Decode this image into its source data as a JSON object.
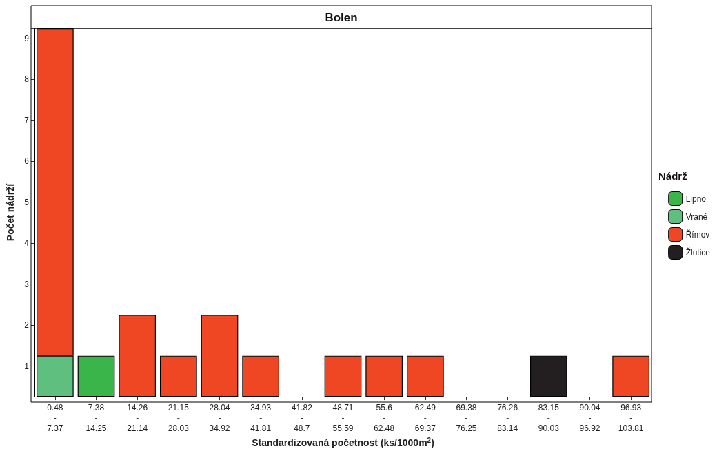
{
  "chart_data": {
    "type": "bar",
    "stacked": true,
    "title": "Bolen",
    "xlabel": "Standardizovaná početnost (ks/1000m$^{2}$)",
    "ylabel": "Počet nádrží",
    "legend_title": "Nádrž",
    "legend": "right",
    "categories": [
      "0.48\n-\n7.37",
      "7.38\n-\n14.25",
      "14.26\n-\n21.14",
      "21.15\n-\n28.03",
      "28.04\n-\n34.92",
      "34.93\n-\n41.81",
      "41.82\n-\n48.7",
      "48.71\n-\n55.59",
      "55.6\n-\n62.48",
      "62.49\n-\n69.37",
      "69.38\n-\n76.25",
      "76.26\n-\n83.14",
      "83.15\n-\n90.03",
      "90.04\n-\n96.92",
      "96.93\n-\n103.81"
    ],
    "series": [
      {
        "name": "Lipno",
        "color": "#39b54a",
        "values": [
          0,
          1,
          0,
          0,
          0,
          0,
          0,
          0,
          0,
          0,
          0,
          0,
          0,
          0,
          0
        ]
      },
      {
        "name": "Vrané",
        "color": "#5fbf7f",
        "values": [
          1,
          0,
          0,
          0,
          0,
          0,
          0,
          0,
          0,
          0,
          0,
          0,
          0,
          0,
          0
        ]
      },
      {
        "name": "Římov",
        "color": "#ef4623",
        "values": [
          8,
          0,
          2,
          1,
          2,
          1,
          0,
          1,
          1,
          1,
          0,
          0,
          0,
          0,
          1
        ]
      },
      {
        "name": "Žlutice",
        "color": "#231f20",
        "values": [
          0,
          0,
          0,
          0,
          0,
          0,
          0,
          0,
          0,
          0,
          0,
          0,
          1,
          0,
          0
        ]
      }
    ],
    "ylim": [
      0,
      9
    ],
    "yticks": [
      {
        "value": 0.75,
        "label": "1"
      },
      {
        "value": 1.75,
        "label": "2"
      },
      {
        "value": 2.75,
        "label": "3"
      },
      {
        "value": 3.75,
        "label": "4"
      },
      {
        "value": 4.75,
        "label": "5"
      },
      {
        "value": 5.75,
        "label": "6"
      },
      {
        "value": 6.75,
        "label": "7"
      },
      {
        "value": 7.75,
        "label": "8"
      },
      {
        "value": 8.75,
        "label": "9"
      }
    ],
    "grid": false
  }
}
